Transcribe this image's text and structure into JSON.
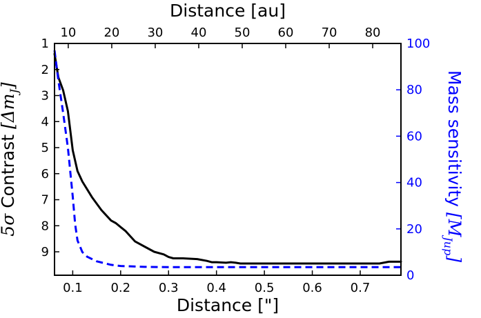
{
  "chart_data": {
    "type": "line",
    "axes": {
      "x_bottom": {
        "label": "Distance [\"]",
        "range": [
          0.062,
          0.785
        ],
        "ticks": [
          0.1,
          0.2,
          0.3,
          0.4,
          0.5,
          0.6,
          0.7
        ],
        "tick_labels": [
          "0.1",
          "0.2",
          "0.3",
          "0.4",
          "0.5",
          "0.6",
          "0.7"
        ]
      },
      "x_top": {
        "label": "Distance [au]",
        "range": [
          6.84,
          86.5
        ],
        "ticks": [
          10,
          20,
          30,
          40,
          50,
          60,
          70,
          80
        ],
        "tick_labels": [
          "10",
          "20",
          "30",
          "40",
          "50",
          "60",
          "70",
          "80"
        ]
      },
      "y_left": {
        "label_prefix": "5",
        "label_sigma": "σ",
        "label_main": " Contrast ",
        "label_math": "[Δm",
        "label_sub": "J",
        "label_end": "]",
        "range": [
          1,
          9.9
        ],
        "inverted": true,
        "ticks": [
          1,
          2,
          3,
          4,
          5,
          6,
          7,
          8,
          9
        ],
        "tick_labels": [
          "1",
          "2",
          "3",
          "4",
          "5",
          "6",
          "7",
          "8",
          "9"
        ]
      },
      "y_right": {
        "label_main": "Mass sensitivity ",
        "label_math": "[M",
        "label_sub": "Jup",
        "label_end": "]",
        "range": [
          0,
          100
        ],
        "ticks": [
          0,
          20,
          40,
          60,
          80,
          100
        ],
        "tick_labels": [
          "0",
          "20",
          "40",
          "60",
          "80",
          "100"
        ]
      }
    },
    "series": [
      {
        "axis": "left",
        "style": "solid",
        "color": "#000000",
        "x": [
          0.062,
          0.07,
          0.08,
          0.09,
          0.1,
          0.11,
          0.12,
          0.14,
          0.16,
          0.18,
          0.19,
          0.2,
          0.21,
          0.22,
          0.23,
          0.25,
          0.27,
          0.29,
          0.3,
          0.31,
          0.33,
          0.35,
          0.36,
          0.38,
          0.39,
          0.4,
          0.42,
          0.43,
          0.44,
          0.45,
          0.46,
          0.5,
          0.6,
          0.7,
          0.74,
          0.76,
          0.785
        ],
        "y": [
          1.4,
          2.3,
          2.8,
          3.6,
          5.1,
          5.9,
          6.3,
          6.9,
          7.4,
          7.8,
          7.9,
          8.05,
          8.2,
          8.4,
          8.6,
          8.8,
          9.0,
          9.1,
          9.2,
          9.25,
          9.25,
          9.27,
          9.28,
          9.35,
          9.4,
          9.4,
          9.42,
          9.4,
          9.42,
          9.45,
          9.45,
          9.45,
          9.45,
          9.45,
          9.45,
          9.38,
          9.38
        ]
      },
      {
        "axis": "right",
        "style": "dashed",
        "color": "#0000ff",
        "x": [
          0.062,
          0.07,
          0.08,
          0.09,
          0.1,
          0.105,
          0.11,
          0.12,
          0.13,
          0.15,
          0.18,
          0.2,
          0.25,
          0.3,
          0.4,
          0.5,
          0.6,
          0.7,
          0.785
        ],
        "y": [
          97.0,
          84.0,
          70.0,
          55.0,
          34.0,
          22.0,
          15.0,
          10.0,
          8.0,
          6.0,
          4.5,
          4.0,
          3.6,
          3.5,
          3.5,
          3.5,
          3.5,
          3.5,
          3.5
        ]
      }
    ]
  }
}
